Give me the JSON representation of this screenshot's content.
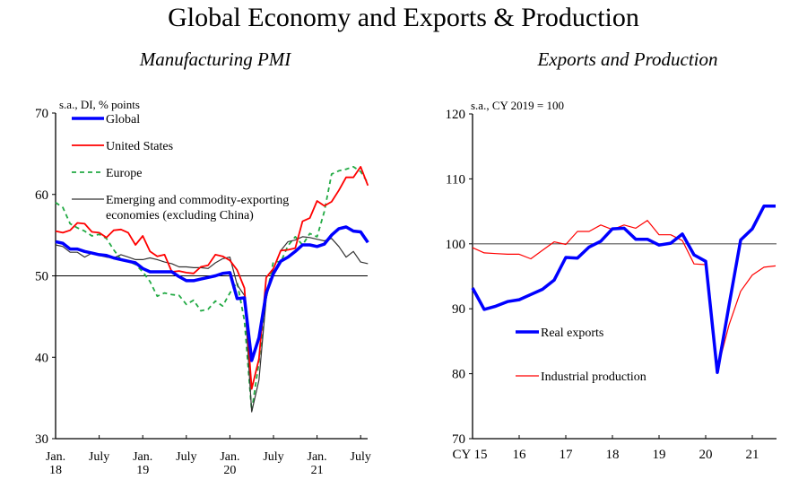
{
  "title": "Global Economy and Exports & Production",
  "chart_data": [
    {
      "type": "line",
      "title": "Manufacturing PMI",
      "unit_label": "s.a., DI, % points",
      "xlabel": "",
      "ylabel": "",
      "ylim": [
        30,
        70
      ],
      "yticks": [
        30,
        40,
        50,
        60,
        70
      ],
      "reference_line": 50,
      "x_start": "2018-01",
      "frequency": "monthly",
      "x_tick_labels": [
        {
          "line1": "Jan.",
          "line2": "18",
          "month_index": 0
        },
        {
          "line1": "July",
          "line2": "",
          "month_index": 6
        },
        {
          "line1": "Jan.",
          "line2": "19",
          "month_index": 12
        },
        {
          "line1": "July",
          "line2": "",
          "month_index": 18
        },
        {
          "line1": "Jan.",
          "line2": "20",
          "month_index": 24
        },
        {
          "line1": "July",
          "line2": "",
          "month_index": 30
        },
        {
          "line1": "Jan.",
          "line2": "21",
          "month_index": 36
        },
        {
          "line1": "July",
          "line2": "",
          "month_index": 42
        }
      ],
      "legend_position": "top-left",
      "series": [
        {
          "name": "Global",
          "color": "#0000ff",
          "style": "thick",
          "values": [
            54.2,
            54.0,
            53.3,
            53.3,
            53.0,
            52.8,
            52.6,
            52.5,
            52.2,
            52.0,
            51.8,
            51.6,
            50.9,
            50.5,
            50.5,
            50.5,
            50.5,
            49.9,
            49.4,
            49.4,
            49.6,
            49.8,
            50.0,
            50.3,
            50.4,
            47.2,
            47.3,
            39.6,
            42.4,
            47.9,
            50.3,
            51.8,
            52.3,
            53.0,
            53.8,
            53.8,
            53.6,
            53.9,
            55.0,
            55.8,
            56.0,
            55.5,
            55.4,
            54.1
          ]
        },
        {
          "name": "United States",
          "color": "#ff0000",
          "style": "solid",
          "values": [
            55.5,
            55.3,
            55.6,
            56.5,
            56.4,
            55.4,
            55.3,
            54.7,
            55.6,
            55.7,
            55.3,
            53.8,
            54.9,
            53.0,
            52.4,
            52.6,
            50.5,
            50.6,
            50.4,
            50.3,
            51.1,
            51.3,
            52.6,
            52.4,
            51.9,
            50.7,
            48.5,
            36.1,
            39.8,
            49.8,
            50.9,
            53.1,
            53.2,
            53.4,
            56.7,
            57.1,
            59.2,
            58.6,
            59.1,
            60.5,
            62.1,
            62.1,
            63.4,
            61.1
          ]
        },
        {
          "name": "Europe",
          "color": "#22aa44",
          "style": "dashed",
          "values": [
            59.0,
            58.4,
            56.4,
            55.9,
            55.5,
            54.9,
            55.1,
            54.6,
            53.2,
            52.0,
            51.8,
            51.4,
            50.5,
            49.3,
            47.5,
            47.9,
            47.7,
            47.6,
            46.5,
            47.0,
            45.7,
            45.9,
            46.9,
            46.3,
            47.9,
            49.2,
            44.5,
            33.4,
            39.4,
            47.4,
            51.8,
            51.7,
            53.7,
            54.8,
            53.8,
            55.2,
            54.8,
            57.9,
            62.5,
            62.9,
            63.1,
            63.4,
            62.8,
            61.4
          ]
        },
        {
          "name": "Emerging and commodity-exporting economies (excluding China)",
          "color": "#333333",
          "style": "thin",
          "values": [
            53.8,
            53.6,
            52.9,
            52.9,
            52.3,
            52.8,
            52.5,
            52.3,
            52.2,
            52.6,
            52.3,
            52.0,
            52.0,
            52.2,
            52.0,
            51.7,
            51.5,
            51.1,
            51.1,
            51.0,
            51.0,
            50.9,
            51.6,
            52.1,
            52.3,
            48.9,
            47.6,
            33.3,
            37.2,
            47.2,
            50.9,
            53.1,
            54.2,
            54.4,
            54.8,
            54.7,
            54.5,
            54.3,
            54.6,
            53.6,
            52.3,
            53.0,
            51.7,
            51.5
          ]
        }
      ],
      "legend": [
        {
          "label": "Global"
        },
        {
          "label": "United States"
        },
        {
          "label": "Europe"
        },
        {
          "label": "Emerging and commodity-exporting",
          "label_line2": "economies (excluding China)"
        }
      ]
    },
    {
      "type": "line",
      "title": "Exports and Production",
      "unit_label": "s.a., CY 2019 = 100",
      "xlabel": "",
      "ylabel": "",
      "ylim": [
        70,
        120
      ],
      "yticks": [
        70,
        80,
        90,
        100,
        110,
        120
      ],
      "reference_line": 100,
      "x_start": "2015Q1",
      "frequency": "quarterly",
      "x_tick_labels": [
        "CY 15",
        "16",
        "17",
        "18",
        "19",
        "20",
        "21"
      ],
      "legend_position": "bottom-left",
      "series": [
        {
          "name": "Real exports",
          "color": "#0000ff",
          "style": "thick",
          "values": [
            93.2,
            89.9,
            90.4,
            91.1,
            91.4,
            92.2,
            93.0,
            94.4,
            97.9,
            97.8,
            99.5,
            100.4,
            102.3,
            102.4,
            100.7,
            100.7,
            99.8,
            100.1,
            101.5,
            98.3,
            97.3,
            80.2,
            90.5,
            100.6,
            102.3,
            105.8,
            105.8
          ]
        },
        {
          "name": "Industrial production",
          "color": "#ff0000",
          "style": "thin",
          "values": [
            99.4,
            98.6,
            98.5,
            98.4,
            98.4,
            97.7,
            99.0,
            100.3,
            99.9,
            101.9,
            101.9,
            102.9,
            102.2,
            102.9,
            102.4,
            103.6,
            101.4,
            101.4,
            100.5,
            96.9,
            96.8,
            80.6,
            87.5,
            92.7,
            95.2,
            96.4,
            96.6
          ]
        }
      ],
      "legend": [
        {
          "label": "Real exports"
        },
        {
          "label": "Industrial production"
        }
      ]
    }
  ]
}
